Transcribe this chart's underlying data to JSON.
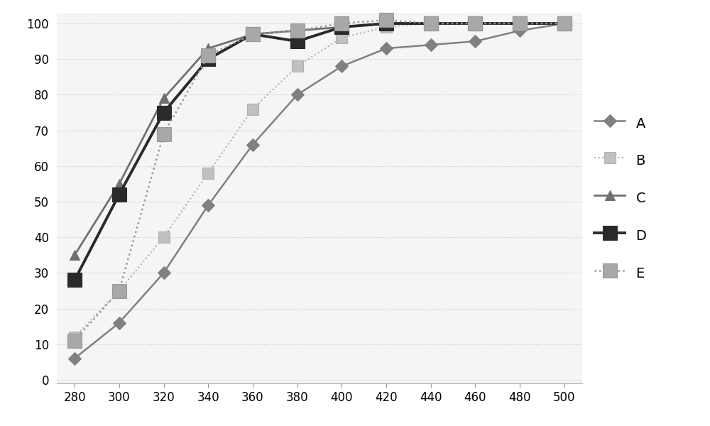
{
  "x": [
    280,
    300,
    320,
    340,
    360,
    380,
    400,
    420,
    440,
    460,
    480,
    500
  ],
  "series": {
    "A": [
      6,
      16,
      30,
      49,
      66,
      80,
      88,
      93,
      94,
      95,
      98,
      100
    ],
    "B": [
      12,
      25,
      40,
      58,
      76,
      88,
      96,
      99,
      100,
      100,
      100,
      100
    ],
    "C": [
      35,
      55,
      79,
      93,
      97,
      98,
      99,
      100,
      100,
      100,
      100,
      100
    ],
    "D": [
      28,
      52,
      75,
      90,
      97,
      95,
      99,
      100,
      100,
      100,
      100,
      100
    ],
    "E": [
      11,
      25,
      69,
      91,
      97,
      98,
      100,
      101,
      100,
      100,
      100,
      100
    ]
  },
  "line_colors": {
    "A": "#808080",
    "B": "#b0b0b0",
    "C": "#707070",
    "D": "#2a2a2a",
    "E": "#989898"
  },
  "marker_colors": {
    "A": "#808080",
    "B": "#c0c0c0",
    "C": "#707070",
    "D": "#2a2a2a",
    "E": "#a8a8a8"
  },
  "markers": {
    "A": "D",
    "B": "s",
    "C": "^",
    "D": "s",
    "E": "s"
  },
  "marker_sizes": {
    "A": 9,
    "B": 11,
    "C": 10,
    "D": 15,
    "E": 15
  },
  "line_styles": {
    "A": "-",
    "B": ":",
    "C": "-",
    "D": "-",
    "E": ":"
  },
  "line_widths": {
    "A": 1.8,
    "B": 1.5,
    "C": 2.0,
    "D": 2.8,
    "E": 1.8
  },
  "xlim": [
    272,
    508
  ],
  "ylim": [
    -1,
    103
  ],
  "xticks": [
    280,
    300,
    320,
    340,
    360,
    380,
    400,
    420,
    440,
    460,
    480,
    500
  ],
  "yticks": [
    0,
    10,
    20,
    30,
    40,
    50,
    60,
    70,
    80,
    90,
    100
  ],
  "grid_color": "#c8c8c8",
  "background_color": "#ffffff",
  "plot_bg_color": "#f5f5f5",
  "legend_fontsize": 14,
  "tick_labelsize": 12
}
